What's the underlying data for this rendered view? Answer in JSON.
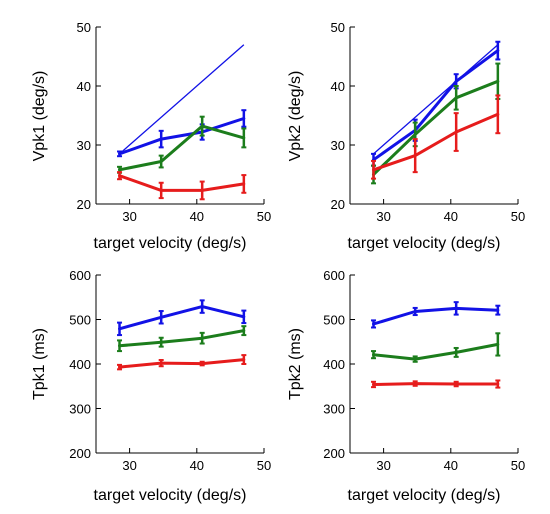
{
  "colors": {
    "s1": "#1212e6",
    "s2": "#1c7d1c",
    "s3": "#e61c1c",
    "axis": "#000000"
  },
  "chart_data": [
    {
      "type": "line",
      "xlabel": "target velocity (deg/s)",
      "ylabel": "Vpk1 (deg/s)",
      "xlim": [
        25,
        50
      ],
      "ylim": [
        20,
        50
      ],
      "xticks": [
        30,
        40,
        50
      ],
      "yticks": [
        20,
        30,
        40,
        50
      ],
      "x": [
        28.5,
        34.7,
        40.8,
        47.0
      ],
      "reference_line": {
        "x": [
          28.5,
          47.0
        ],
        "y": [
          28.5,
          47.0
        ]
      },
      "series": [
        {
          "color": "#1212e6",
          "values": [
            28.5,
            31.0,
            32.2,
            34.5
          ],
          "err": [
            0.4,
            1.4,
            1.3,
            1.4
          ]
        },
        {
          "color": "#1c7d1c",
          "values": [
            25.8,
            27.2,
            33.2,
            31.2
          ],
          "err": [
            0.5,
            1.0,
            1.6,
            1.6
          ]
        },
        {
          "color": "#e61c1c",
          "values": [
            24.8,
            22.3,
            22.3,
            23.4
          ],
          "err": [
            0.6,
            1.3,
            1.5,
            1.5
          ]
        }
      ]
    },
    {
      "type": "line",
      "xlabel": "target velocity (deg/s)",
      "ylabel": "Vpk2 (deg/s)",
      "xlim": [
        25,
        50
      ],
      "ylim": [
        20,
        50
      ],
      "xticks": [
        30,
        40,
        50
      ],
      "yticks": [
        20,
        30,
        40,
        50
      ],
      "x": [
        28.5,
        34.7,
        40.8,
        47.0
      ],
      "reference_line": {
        "x": [
          28.5,
          47.0
        ],
        "y": [
          28.5,
          47.0
        ]
      },
      "series": [
        {
          "color": "#1212e6",
          "values": [
            27.5,
            32.5,
            40.8,
            46.0
          ],
          "err": [
            1.0,
            1.8,
            1.2,
            1.5
          ]
        },
        {
          "color": "#1c7d1c",
          "values": [
            25.0,
            31.8,
            38.0,
            40.8
          ],
          "err": [
            1.5,
            2.0,
            2.0,
            3.0
          ]
        },
        {
          "color": "#e61c1c",
          "values": [
            25.8,
            28.2,
            32.2,
            35.2
          ],
          "err": [
            1.5,
            2.8,
            3.2,
            3.2
          ]
        }
      ]
    },
    {
      "type": "line",
      "xlabel": "target velocity (deg/s)",
      "ylabel": "Tpk1 (ms)",
      "xlim": [
        25,
        50
      ],
      "ylim": [
        200,
        600
      ],
      "xticks": [
        30,
        40,
        50
      ],
      "yticks": [
        200,
        300,
        400,
        500,
        600
      ],
      "x": [
        28.5,
        34.7,
        40.8,
        47.0
      ],
      "series": [
        {
          "color": "#1212e6",
          "values": [
            479,
            505,
            529,
            506
          ],
          "err": [
            14,
            14,
            14,
            14
          ]
        },
        {
          "color": "#1c7d1c",
          "values": [
            441,
            449,
            458,
            475
          ],
          "err": [
            12,
            10,
            12,
            10
          ]
        },
        {
          "color": "#e61c1c",
          "values": [
            393,
            402,
            401,
            410
          ],
          "err": [
            5,
            7,
            4,
            10
          ]
        }
      ]
    },
    {
      "type": "line",
      "xlabel": "target velocity (deg/s)",
      "ylabel": "Tpk2 (ms)",
      "xlim": [
        25,
        50
      ],
      "ylim": [
        200,
        600
      ],
      "xticks": [
        30,
        40,
        50
      ],
      "yticks": [
        200,
        300,
        400,
        500,
        600
      ],
      "x": [
        28.5,
        34.7,
        40.8,
        47.0
      ],
      "series": [
        {
          "color": "#1212e6",
          "values": [
            490,
            518,
            525,
            521
          ],
          "err": [
            8,
            8,
            14,
            10
          ]
        },
        {
          "color": "#1c7d1c",
          "values": [
            421,
            411,
            426,
            444
          ],
          "err": [
            8,
            6,
            10,
            25
          ]
        },
        {
          "color": "#e61c1c",
          "values": [
            354,
            356,
            355,
            355
          ],
          "err": [
            6,
            5,
            5,
            8
          ]
        }
      ]
    }
  ]
}
